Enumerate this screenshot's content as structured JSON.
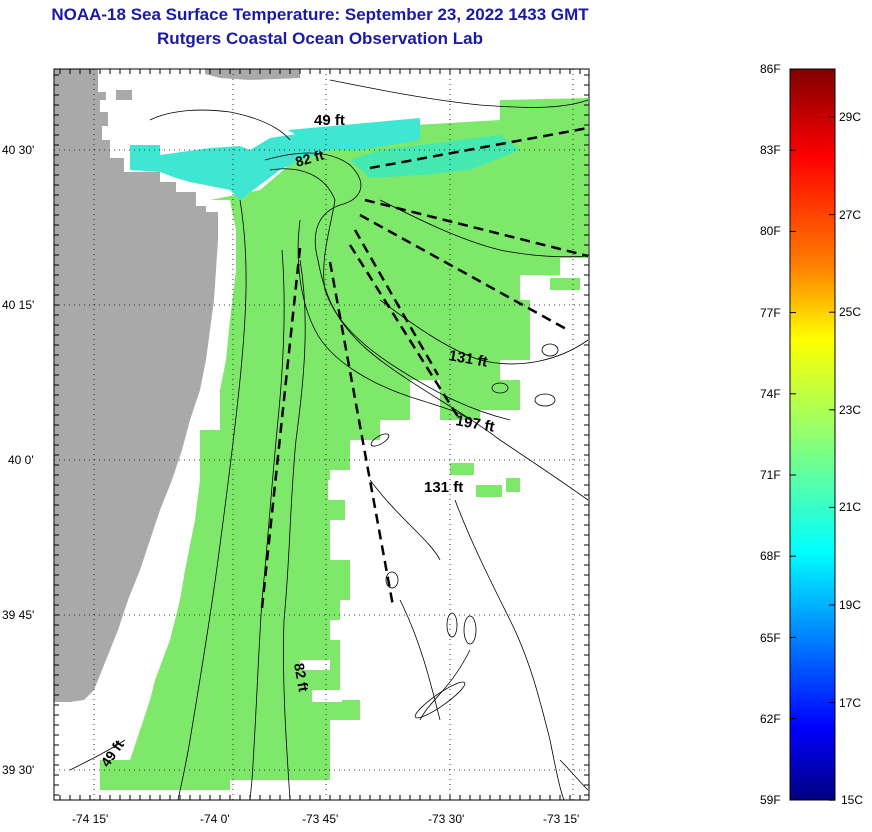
{
  "title": {
    "line1": "NOAA-18 Sea Surface Temperature:  September 23, 2022 1433 GMT",
    "line2": "Rutgers Coastal Ocean Observation Lab"
  },
  "map": {
    "lat_labels": [
      "40 30'",
      "40 15'",
      "40 0'",
      "39 45'",
      "39 30'"
    ],
    "lon_labels": [
      "-74 15'",
      "-74 0'",
      "-73 45'",
      "-73 30'",
      "-73 15'"
    ],
    "depth_labels": [
      "49 ft",
      "82 ft",
      "131 ft",
      "197 ft",
      "131 ft",
      "82 ft",
      "49 ft"
    ],
    "colors": {
      "land": "#a9a9a9",
      "sst_green": "#7ee86a",
      "sst_cyan": "#3fe6d2",
      "sst_teal": "#45e8b0",
      "title": "#1a1aa6"
    }
  },
  "colorbar": {
    "f_labels": [
      "86F",
      "83F",
      "80F",
      "77F",
      "74F",
      "71F",
      "68F",
      "65F",
      "62F",
      "59F"
    ],
    "c_labels": [
      "29C",
      "27C",
      "25C",
      "23C",
      "21C",
      "19C",
      "17C",
      "15C"
    ],
    "colors": [
      "#800000",
      "#ff0000",
      "#ff8000",
      "#ffff00",
      "#80ff80",
      "#00ffff",
      "#0080ff",
      "#0000ff",
      "#000080"
    ]
  }
}
